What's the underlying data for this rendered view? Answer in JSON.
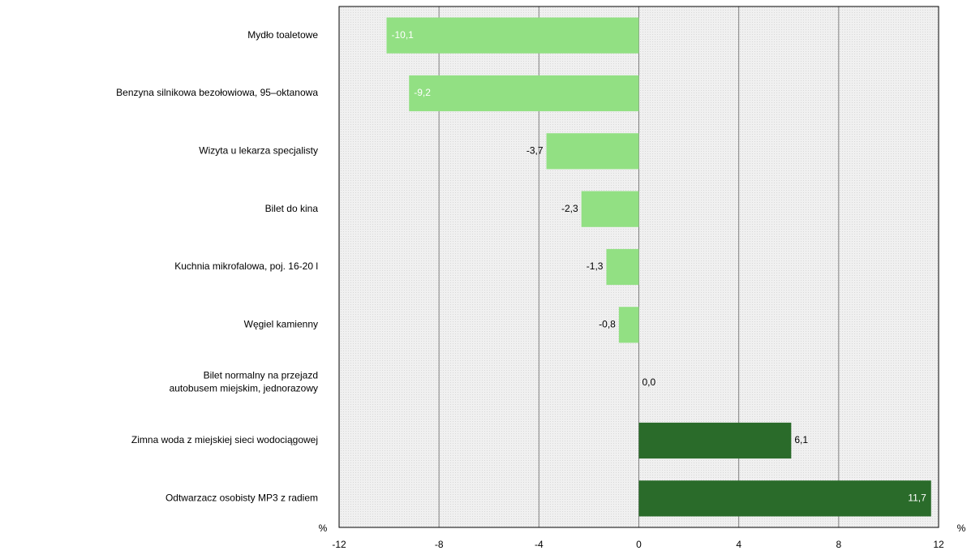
{
  "chart_data": {
    "type": "bar",
    "orientation": "horizontal",
    "categories": [
      "Mydło toaletowe",
      "Benzyna silnikowa bezołowiowa, 95–oktanowa",
      "Wizyta u lekarza specjalisty",
      "Bilet do kina",
      "Kuchnia mikrofalowa, poj. 16-20 l",
      "Węgiel kamienny",
      "Bilet normalny na przejazd\nautobusem miejskim, jednorazowy",
      "Zimna woda z miejskiej sieci wodociągowej",
      "Odtwarzacz osobisty MP3 z radiem"
    ],
    "values": [
      -10.1,
      -9.2,
      -3.7,
      -2.3,
      -1.3,
      -0.8,
      0.0,
      6.1,
      11.7
    ],
    "value_labels": [
      "-10,1",
      "-9,2",
      "-3,7",
      "-2,3",
      "-1,3",
      "-0,8",
      "0,0",
      "6,1",
      "11,7"
    ],
    "colors": [
      "#92e083",
      "#92e083",
      "#92e083",
      "#92e083",
      "#92e083",
      "#92e083",
      "#92e083",
      "#2a6b2a",
      "#2a6b2a"
    ],
    "xlabel": "%",
    "xlim": [
      -12,
      12
    ],
    "xticks": [
      -12,
      -8,
      -4,
      0,
      4,
      8,
      12
    ],
    "grid": true
  }
}
